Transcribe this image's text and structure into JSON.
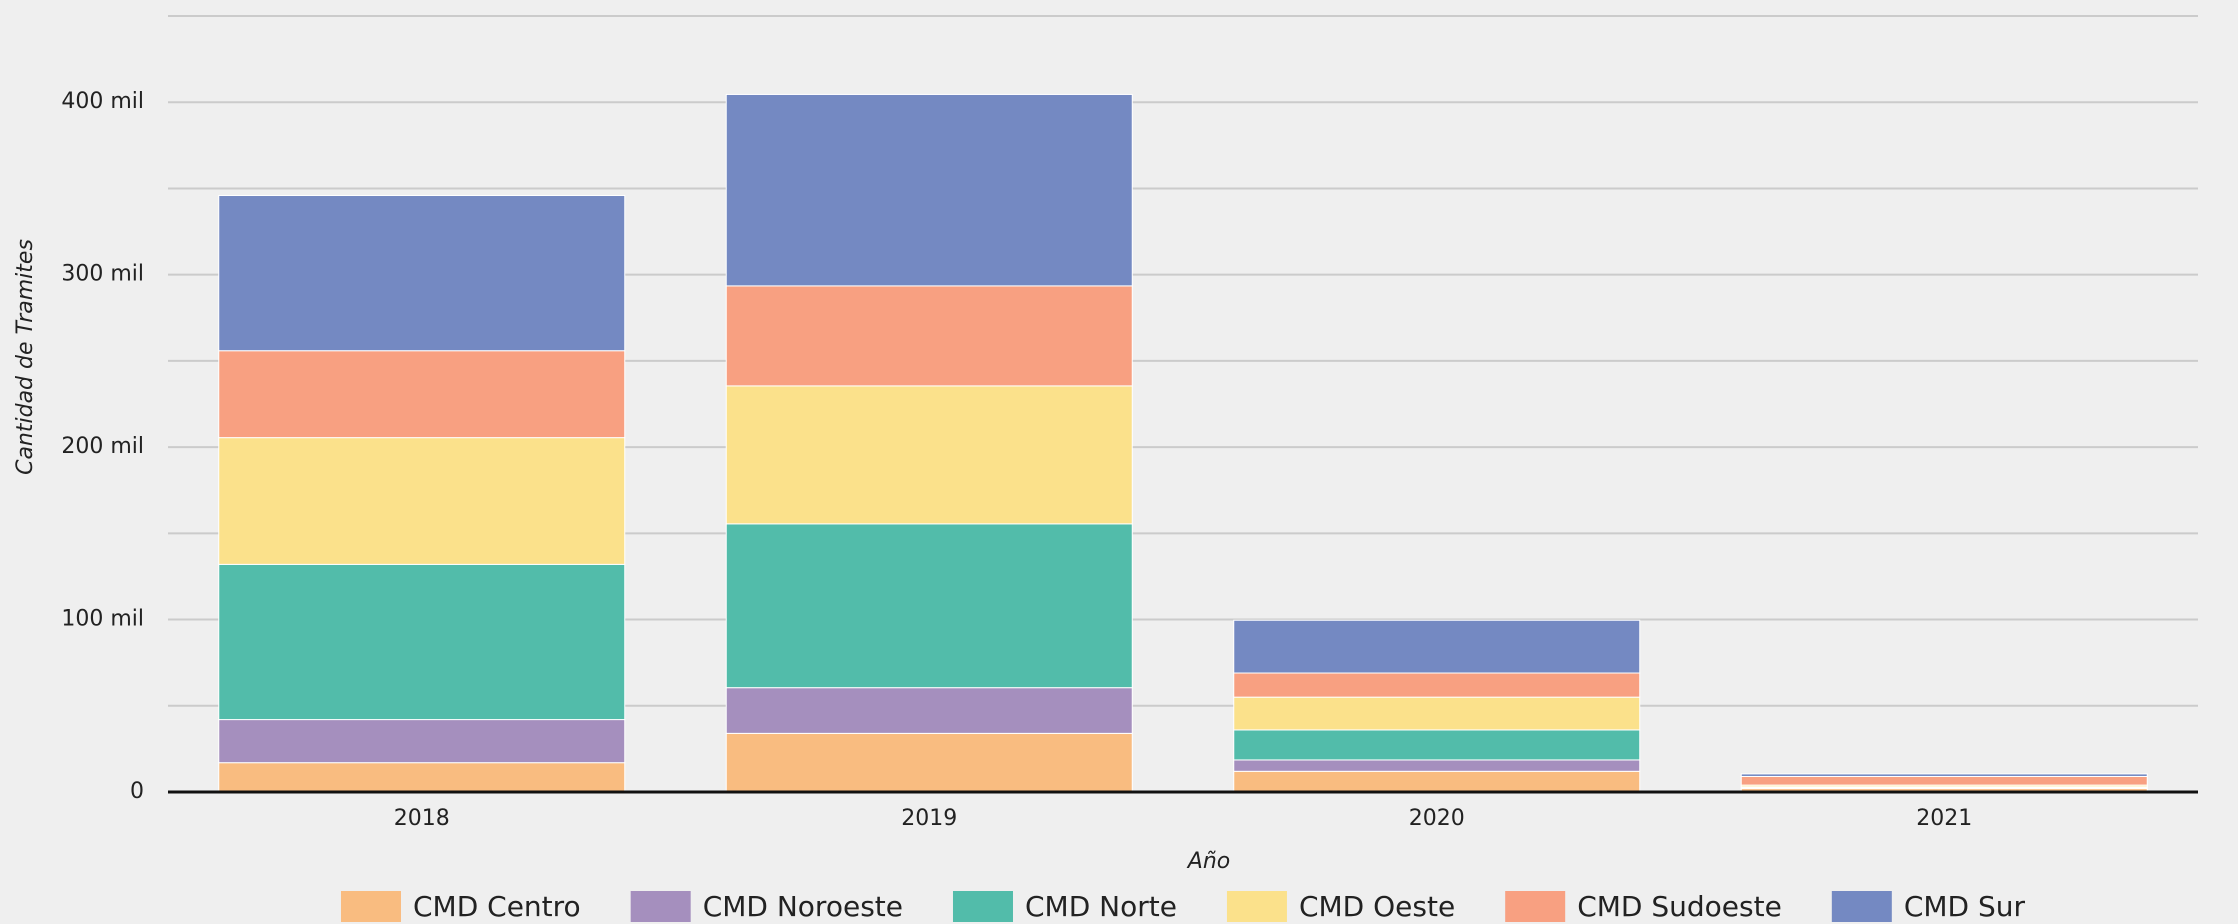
{
  "chart_data": {
    "type": "stacked_bar",
    "x_label": "Año",
    "y_label": "Cantidad de Tramites",
    "categories": [
      "2018",
      "2019",
      "2020",
      "2021"
    ],
    "series": [
      {
        "name": "CMD Centro",
        "color": "#f9bc80",
        "values": [
          17000,
          34000,
          12000,
          2000
        ]
      },
      {
        "name": "CMD Noroeste",
        "color": "#a58fbe",
        "values": [
          25000,
          26500,
          6600,
          500
        ]
      },
      {
        "name": "CMD Norte",
        "color": "#52bcaa",
        "values": [
          90000,
          95000,
          17400,
          500
        ]
      },
      {
        "name": "CMD Oeste",
        "color": "#fbe18b",
        "values": [
          73500,
          80000,
          19000,
          1000
        ]
      },
      {
        "name": "CMD Sudoeste",
        "color": "#f8a081",
        "values": [
          50400,
          58000,
          14000,
          5000
        ]
      },
      {
        "name": "CMD Sur",
        "color": "#7489c2",
        "values": [
          90000,
          111000,
          30600,
          1500
        ]
      }
    ],
    "ylim": [
      0,
      450000
    ],
    "yticks": [
      0,
      {
        "value": 100000,
        "label": "100 mil"
      },
      {
        "value": 200000,
        "label": "200 mil"
      },
      {
        "value": 300000,
        "label": "300 mil"
      },
      {
        "value": 400000,
        "label": "400 mil"
      }
    ],
    "grid_lines": [
      50000,
      100000,
      150000,
      200000,
      250000,
      300000,
      350000,
      400000,
      450000
    ],
    "grid": true
  }
}
